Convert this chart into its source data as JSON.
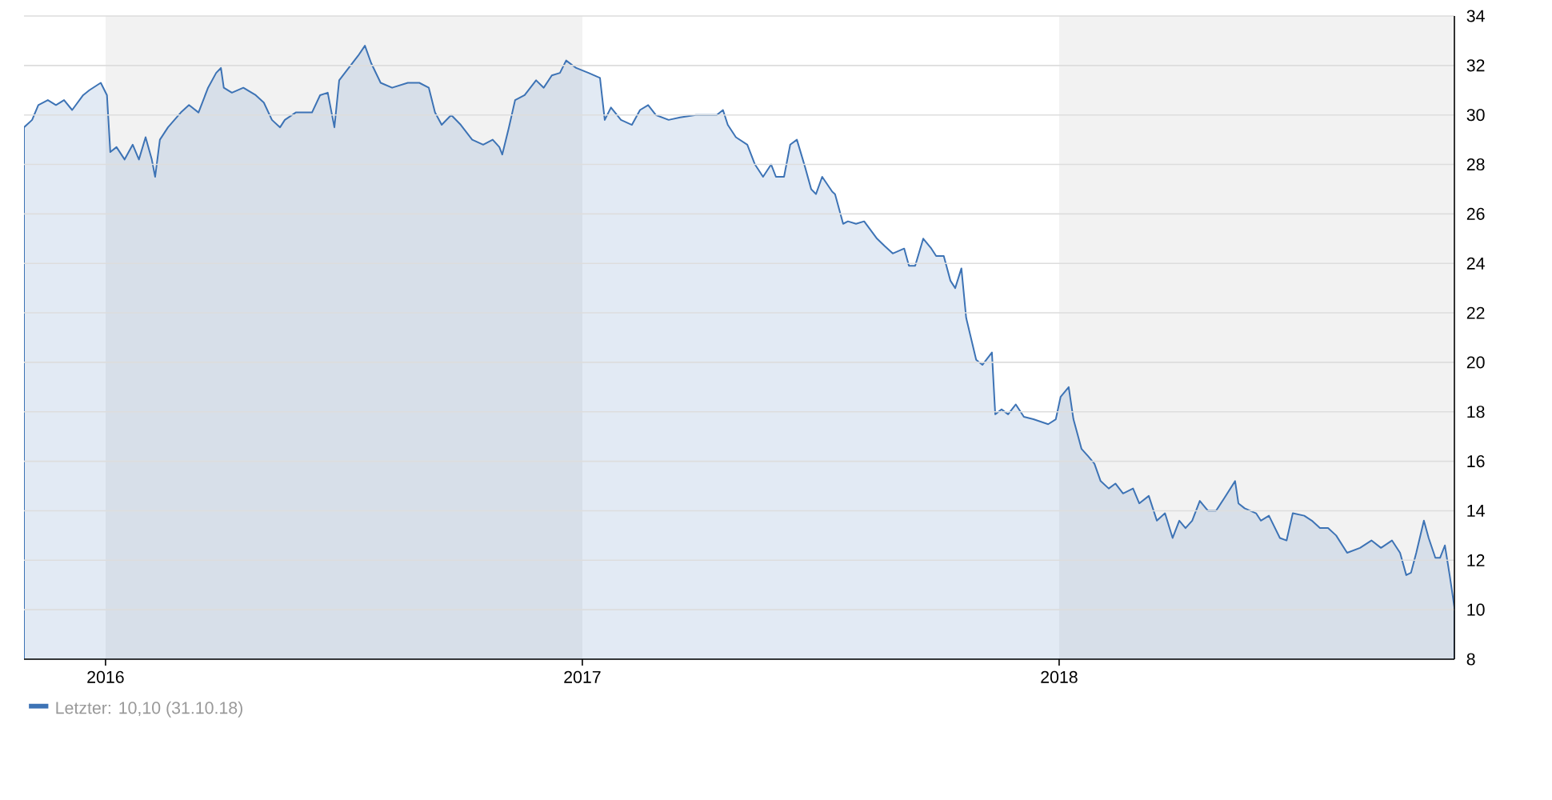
{
  "chart_data": {
    "type": "area",
    "xlim": [
      2015.829,
      2018.829
    ],
    "xticks": [
      2016,
      2017,
      2018
    ],
    "ylim": [
      8,
      34
    ],
    "yticks": [
      8,
      10,
      12,
      14,
      16,
      18,
      20,
      22,
      24,
      26,
      28,
      30,
      32,
      34
    ],
    "grid": "y",
    "legend": "bottom left",
    "bands": [
      {
        "axis": "x",
        "from": 2016,
        "to": 2017,
        "color": "#f2f2f2"
      },
      {
        "axis": "x",
        "from": 2018,
        "to": 2018.829,
        "color": "#f2f2f2"
      }
    ],
    "series": [
      {
        "name": "Letzter: 10,10 (31.10.18)",
        "color": "#3d73b5",
        "x": [
          2015.829,
          2015.846,
          2015.859,
          2015.879,
          2015.896,
          2015.913,
          2015.93,
          2015.953,
          2015.966,
          2015.99,
          2016.003,
          2016.01,
          2016.023,
          2016.04,
          2016.057,
          2016.07,
          2016.084,
          2016.097,
          2016.104,
          2016.114,
          2016.131,
          2016.158,
          2016.175,
          2016.195,
          2016.215,
          2016.232,
          2016.242,
          2016.248,
          2016.265,
          2016.289,
          2016.315,
          2016.332,
          2016.349,
          2016.366,
          2016.376,
          2016.399,
          2016.433,
          2016.45,
          2016.466,
          2016.48,
          2016.49,
          2016.51,
          2016.53,
          2016.544,
          2016.557,
          2016.577,
          2016.601,
          2016.634,
          2016.658,
          2016.678,
          2016.691,
          2016.705,
          2016.725,
          2016.745,
          2016.769,
          2016.792,
          2016.812,
          2016.826,
          2016.832,
          2016.846,
          2016.859,
          2016.879,
          2016.903,
          2016.919,
          2016.936,
          2016.953,
          2016.966,
          2016.987,
          2017.013,
          2017.037,
          2017.047,
          2017.06,
          2017.081,
          2017.104,
          2017.121,
          2017.138,
          2017.154,
          2017.181,
          2017.205,
          2017.238,
          2017.282,
          2017.295,
          2017.305,
          2017.322,
          2017.346,
          2017.362,
          2017.379,
          2017.396,
          2017.406,
          2017.423,
          2017.436,
          2017.45,
          2017.467,
          2017.48,
          2017.49,
          2017.503,
          2017.524,
          2017.53,
          2017.547,
          2017.557,
          2017.574,
          2017.591,
          2017.618,
          2017.634,
          2017.651,
          2017.675,
          2017.685,
          2017.698,
          2017.715,
          2017.732,
          2017.742,
          2017.758,
          2017.772,
          2017.782,
          2017.795,
          2017.805,
          2017.826,
          2017.839,
          2017.859,
          2017.866,
          2017.879,
          2017.893,
          2017.909,
          2017.926,
          2017.946,
          2017.977,
          2017.993,
          2018.003,
          2018.02,
          2018.03,
          2018.047,
          2018.061,
          2018.074,
          2018.087,
          2018.104,
          2018.118,
          2018.134,
          2018.155,
          2018.168,
          2018.188,
          2018.205,
          2018.222,
          2018.238,
          2018.252,
          2018.265,
          2018.279,
          2018.295,
          2018.312,
          2018.329,
          2018.346,
          2018.369,
          2018.376,
          2018.389,
          2018.413,
          2018.423,
          2018.44,
          2018.463,
          2018.477,
          2018.49,
          2018.514,
          2018.53,
          2018.547,
          2018.564,
          2018.581,
          2018.604,
          2018.631,
          2018.655,
          2018.675,
          2018.698,
          2018.715,
          2018.728,
          2018.738,
          2018.749,
          2018.765,
          2018.775,
          2018.789,
          2018.799,
          2018.809,
          2018.819,
          2018.829
        ],
        "values": [
          29.5,
          29.8,
          30.4,
          30.6,
          30.4,
          30.6,
          30.2,
          30.8,
          31.0,
          31.3,
          30.8,
          28.5,
          28.7,
          28.2,
          28.8,
          28.2,
          29.1,
          28.2,
          27.5,
          29.0,
          29.5,
          30.1,
          30.4,
          30.1,
          31.1,
          31.7,
          31.9,
          31.1,
          30.9,
          31.1,
          30.8,
          30.5,
          29.8,
          29.5,
          29.8,
          30.1,
          30.1,
          30.8,
          30.9,
          29.5,
          31.4,
          31.9,
          32.4,
          32.8,
          32.1,
          31.3,
          31.1,
          31.3,
          31.3,
          31.1,
          30.1,
          29.6,
          30.0,
          29.6,
          29.0,
          28.8,
          29.0,
          28.7,
          28.4,
          29.5,
          30.6,
          30.8,
          31.4,
          31.1,
          31.6,
          31.7,
          32.2,
          31.9,
          31.7,
          31.5,
          29.8,
          30.3,
          29.8,
          29.6,
          30.2,
          30.4,
          30.0,
          29.8,
          29.9,
          30.0,
          30.0,
          30.2,
          29.6,
          29.1,
          28.8,
          28.0,
          27.5,
          28.0,
          27.5,
          27.5,
          28.8,
          29.0,
          27.9,
          27.0,
          26.8,
          27.5,
          26.9,
          26.8,
          25.6,
          25.7,
          25.6,
          25.7,
          25.0,
          24.7,
          24.4,
          24.6,
          23.9,
          23.9,
          25.0,
          24.6,
          24.3,
          24.3,
          23.3,
          23.0,
          23.8,
          21.8,
          20.1,
          19.9,
          20.4,
          17.9,
          18.1,
          17.9,
          18.3,
          17.8,
          17.7,
          17.5,
          17.7,
          18.6,
          19.0,
          17.7,
          16.5,
          16.2,
          15.9,
          15.2,
          14.9,
          15.1,
          14.7,
          14.9,
          14.3,
          14.6,
          13.6,
          13.9,
          12.9,
          13.6,
          13.3,
          13.6,
          14.4,
          14.0,
          14.0,
          14.5,
          15.2,
          14.3,
          14.1,
          13.9,
          13.6,
          13.8,
          12.9,
          12.8,
          13.9,
          13.8,
          13.6,
          13.3,
          13.3,
          13.0,
          12.3,
          12.5,
          12.8,
          12.5,
          12.8,
          12.3,
          11.4,
          11.5,
          12.3,
          13.6,
          12.9,
          12.1,
          12.1,
          12.6,
          11.4,
          10.1
        ]
      }
    ]
  }
}
